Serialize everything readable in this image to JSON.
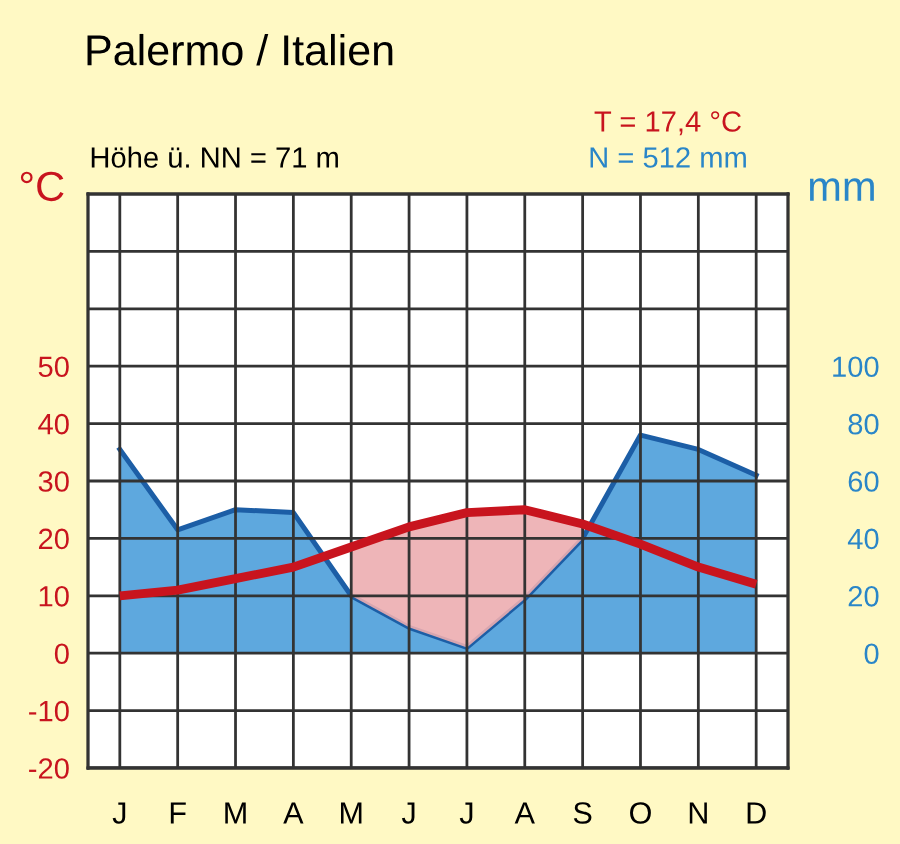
{
  "chart_data": {
    "type": "line",
    "title": "Palermo / Italien",
    "ylabel": "°C",
    "y2label": "mm",
    "annotations": [
      "Höhe ü. NN = 71 m",
      "T = 17,4 °C",
      "N = 512 mm"
    ],
    "categories": [
      "J",
      "F",
      "M",
      "A",
      "M",
      "J",
      "J",
      "A",
      "S",
      "O",
      "N",
      "D"
    ],
    "series": [
      {
        "color": "#c8141e",
        "values": [
          10,
          11,
          13,
          15,
          18.5,
          22,
          24.5,
          25,
          22.5,
          19,
          15,
          12
        ],
        "lower": [
          null,
          null,
          null,
          null,
          10,
          4.5,
          1,
          9.5,
          20,
          null,
          null,
          null
        ],
        "upper": [
          null,
          null,
          null,
          null,
          18.5,
          22,
          24.5,
          25,
          22.5,
          null,
          null,
          null
        ]
      },
      {
        "type": "area",
        "axis": "y2",
        "color": "#5ea8de",
        "values": [
          71,
          43,
          50,
          49,
          20,
          9,
          2,
          19,
          40,
          76,
          71,
          62
        ]
      }
    ],
    "ylim": [
      -20,
      80
    ],
    "yticks": [
      -20,
      -10,
      0,
      10,
      20,
      30,
      40,
      50,
      {
        "value": 60,
        "label": null
      },
      {
        "value": 70,
        "label": null
      }
    ],
    "y2lim": [
      -40,
      160
    ],
    "y2ticks": [
      0,
      20,
      40,
      60,
      80,
      100
    ],
    "grid": true
  }
}
